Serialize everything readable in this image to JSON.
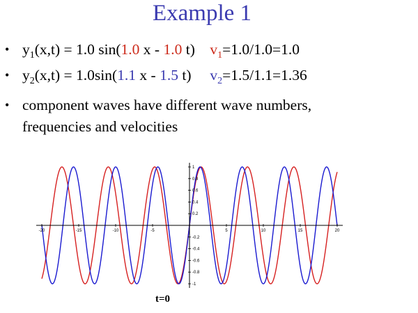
{
  "title": "Example 1",
  "bullets": [
    {
      "lhs": "y",
      "lhs_sub": "1",
      "eq_pre": "(x,t) = 1.0 sin(",
      "k": "1.0",
      "mid": " x - ",
      "w": "1.0",
      "eq_post": " t)",
      "v": "v",
      "v_sub": "1",
      "v_eq": "=1.0/1.0=1.0"
    },
    {
      "lhs": "y",
      "lhs_sub": "2",
      "eq_pre": "(x,t) = 1.0sin(",
      "k": "1.1",
      "mid": " x - ",
      "w": "1.5",
      "eq_post": " t)",
      "v": "v",
      "v_sub": "2",
      "v_eq": "=1.5/1.1=1.36"
    },
    {
      "line1": "component waves have different wave numbers,",
      "line2": "frequencies and velocities"
    }
  ],
  "caption": "t=0",
  "colors": {
    "title": "#3b3bb0",
    "red": "#cc2a1a",
    "blue": "#3b3bb0",
    "wave1": "#d62020",
    "wave2": "#1a1ad0"
  },
  "chart_data": {
    "type": "line",
    "title": "",
    "xlabel": "",
    "ylabel": "",
    "xlim": [
      -20,
      20
    ],
    "ylim": [
      -1,
      1
    ],
    "grid": false,
    "series": [
      {
        "function": "1.0*sin(1.0*x)",
        "color": "#d62020"
      },
      {
        "function": "1.0*sin(1.1*x)",
        "color": "#1a1ad0"
      }
    ],
    "x_ticks": [
      "-20",
      "-15",
      "-10",
      "-5",
      "0",
      "5",
      "10",
      "15",
      "20"
    ],
    "y_ticks": [
      "1",
      "0.8",
      "0.6",
      "0.4",
      "0.2",
      "-0.2",
      "-0.4",
      "-0.6",
      "-0.8",
      "-1"
    ]
  }
}
